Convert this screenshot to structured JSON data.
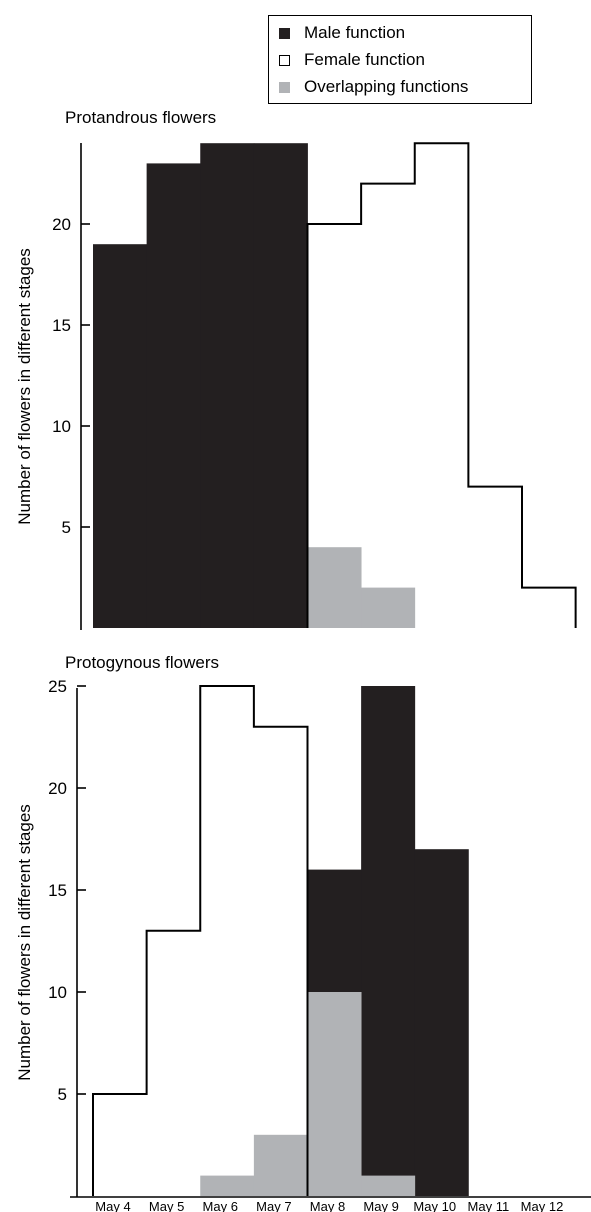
{
  "legend": {
    "items": [
      {
        "label": "Male function",
        "color": "#231f20",
        "style": "filled"
      },
      {
        "label": "Female function",
        "color": "#ffffff",
        "style": "outlined"
      },
      {
        "label": "Overlapping functions",
        "color": "#b1b3b6",
        "style": "filled"
      }
    ]
  },
  "colors": {
    "male": "#231f20",
    "female_outline": "#000000",
    "overlap": "#b1b3b6"
  },
  "chart_data": [
    {
      "type": "bar",
      "title": "Protandrous flowers",
      "ylabel": "Number of flowers in different stages",
      "xlabel": "",
      "categories": [
        "May 4",
        "May 5",
        "May 6",
        "May 7",
        "May 8",
        "May 9",
        "May 10",
        "May 11",
        "May 12"
      ],
      "yticks": [
        5,
        10,
        15,
        20
      ],
      "ylim": [
        0,
        24
      ],
      "series": [
        {
          "name": "Male function",
          "values": [
            19,
            23,
            24,
            24,
            0,
            0,
            0,
            0,
            0
          ]
        },
        {
          "name": "Female function",
          "values": [
            0,
            0,
            0,
            0,
            20,
            22,
            24,
            7,
            2
          ]
        },
        {
          "name": "Overlapping functions",
          "values": [
            0,
            0,
            0,
            0,
            4,
            2,
            0,
            0,
            0
          ]
        }
      ]
    },
    {
      "type": "bar",
      "title": "Protogynous flowers",
      "ylabel": "Number of flowers in different stages",
      "xlabel": "",
      "categories": [
        "May 4",
        "May 5",
        "May 6",
        "May 7",
        "May 8",
        "May 9",
        "May 10",
        "May 11",
        "May 12"
      ],
      "x_tick_labels": [
        "May 4",
        "May 5",
        "May 6",
        "May 7",
        "May 8",
        "May 9",
        "May 10",
        "May 11",
        "May 12"
      ],
      "yticks": [
        5,
        10,
        15,
        20,
        25
      ],
      "ylim": [
        0,
        25
      ],
      "series": [
        {
          "name": "Female function",
          "values": [
            5,
            13,
            25,
            23,
            0,
            0,
            0,
            0,
            0
          ]
        },
        {
          "name": "Male function",
          "values": [
            0,
            0,
            0,
            0,
            16,
            25,
            17,
            0,
            0
          ]
        },
        {
          "name": "Overlapping functions",
          "values": [
            0,
            0,
            1,
            3,
            10,
            1,
            0,
            0,
            0
          ]
        }
      ]
    }
  ]
}
